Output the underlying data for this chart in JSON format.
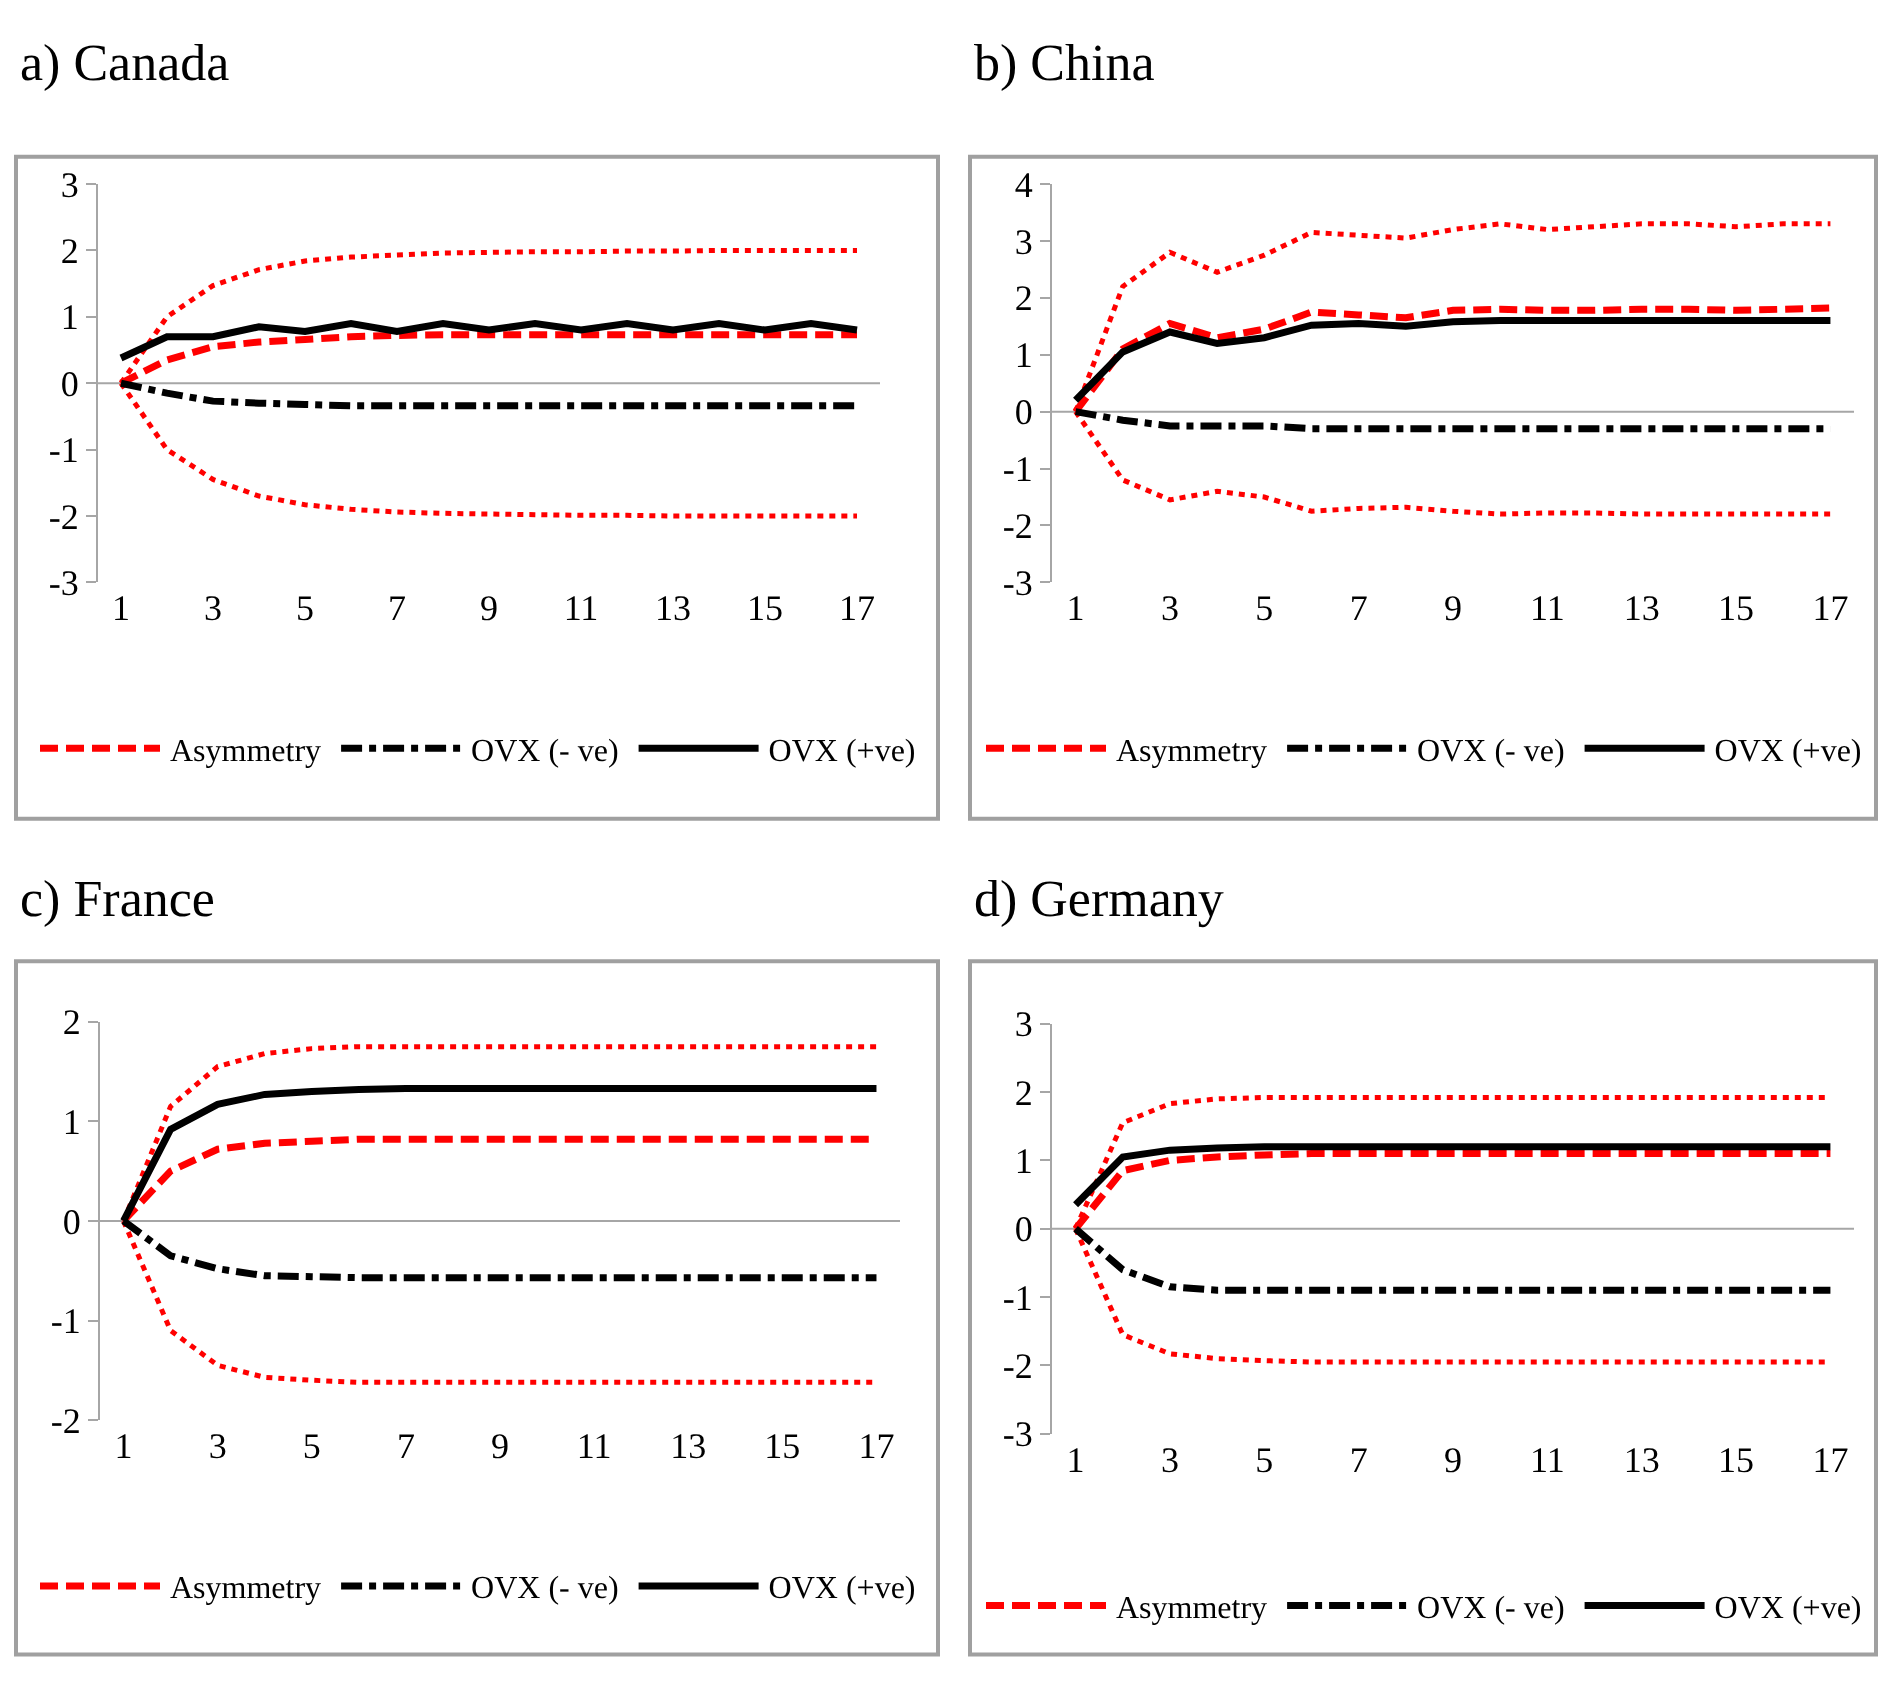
{
  "chart_data": [
    {
      "type": "line",
      "title": "a) Canada",
      "x": [
        1,
        2,
        3,
        4,
        5,
        6,
        7,
        8,
        9,
        10,
        11,
        12,
        13,
        14,
        15,
        16,
        17
      ],
      "xlim": [
        0.5,
        17.5
      ],
      "xticks": [
        1,
        3,
        5,
        7,
        9,
        11,
        13,
        15,
        17
      ],
      "ylim": [
        -3,
        3
      ],
      "yticks": [
        -3,
        -2,
        -1,
        0,
        1,
        2,
        3
      ],
      "grid": false,
      "legend": "bottom",
      "ref_lines": [
        {
          "axis": "y",
          "value": 0,
          "color": "#a6a6a6"
        }
      ],
      "series": [
        {
          "color": "#ff0000",
          "line_style": "dotted",
          "values": [
            0,
            1.0,
            1.47,
            1.71,
            1.84,
            1.9,
            1.93,
            1.96,
            1.97,
            1.98,
            1.98,
            1.99,
            1.99,
            2.0,
            2.0,
            2.0,
            2.0
          ]
        },
        {
          "color": "#ff0000",
          "line_style": "dotted",
          "values": [
            0,
            -1.0,
            -1.45,
            -1.7,
            -1.83,
            -1.9,
            -1.94,
            -1.96,
            -1.97,
            -1.98,
            -1.99,
            -1.99,
            -2.0,
            -2.0,
            -2.0,
            -2.0,
            -2.0
          ]
        },
        {
          "name": "Asymmetry",
          "color": "#ff0000",
          "line_style": "dashed",
          "values": [
            0,
            0.35,
            0.55,
            0.62,
            0.66,
            0.7,
            0.72,
            0.73,
            0.73,
            0.73,
            0.73,
            0.73,
            0.73,
            0.73,
            0.73,
            0.73,
            0.73
          ]
        },
        {
          "name": "OVX (- ve)",
          "color": "#000000",
          "line_style": "dashdot",
          "values": [
            0,
            -0.15,
            -0.27,
            -0.3,
            -0.32,
            -0.34,
            -0.34,
            -0.34,
            -0.34,
            -0.34,
            -0.34,
            -0.34,
            -0.34,
            -0.34,
            -0.34,
            -0.34,
            -0.34
          ]
        },
        {
          "name": "OVX (+ve)",
          "color": "#000000",
          "line_style": "solid",
          "values": [
            0.38,
            0.7,
            0.7,
            0.85,
            0.78,
            0.9,
            0.78,
            0.9,
            0.8,
            0.9,
            0.8,
            0.9,
            0.8,
            0.9,
            0.8,
            0.9,
            0.8
          ]
        }
      ]
    },
    {
      "type": "line",
      "title": "b) China",
      "x": [
        1,
        2,
        3,
        4,
        5,
        6,
        7,
        8,
        9,
        10,
        11,
        12,
        13,
        14,
        15,
        16,
        17
      ],
      "xlim": [
        0.5,
        17.5
      ],
      "xticks": [
        1,
        3,
        5,
        7,
        9,
        11,
        13,
        15,
        17
      ],
      "ylim": [
        -3,
        4
      ],
      "yticks": [
        -3,
        -2,
        -1,
        0,
        1,
        2,
        3,
        4
      ],
      "grid": false,
      "legend": "bottom",
      "ref_lines": [
        {
          "axis": "y",
          "value": 0,
          "color": "#a6a6a6"
        }
      ],
      "series": [
        {
          "color": "#ff0000",
          "line_style": "dotted",
          "values": [
            0,
            2.2,
            2.8,
            2.45,
            2.75,
            3.15,
            3.1,
            3.05,
            3.2,
            3.3,
            3.2,
            3.25,
            3.3,
            3.3,
            3.25,
            3.3,
            3.3
          ]
        },
        {
          "color": "#ff0000",
          "line_style": "dotted",
          "values": [
            0,
            -1.2,
            -1.55,
            -1.4,
            -1.5,
            -1.75,
            -1.7,
            -1.68,
            -1.75,
            -1.8,
            -1.78,
            -1.78,
            -1.8,
            -1.8,
            -1.8,
            -1.8,
            -1.8
          ]
        },
        {
          "name": "Asymmetry",
          "color": "#ff0000",
          "line_style": "dashed",
          "values": [
            0,
            1.1,
            1.55,
            1.3,
            1.45,
            1.75,
            1.7,
            1.65,
            1.78,
            1.8,
            1.78,
            1.78,
            1.8,
            1.8,
            1.78,
            1.8,
            1.82
          ]
        },
        {
          "name": "OVX (- ve)",
          "color": "#000000",
          "line_style": "dashdot",
          "values": [
            0,
            -0.15,
            -0.25,
            -0.25,
            -0.25,
            -0.3,
            -0.3,
            -0.3,
            -0.3,
            -0.3,
            -0.3,
            -0.3,
            -0.3,
            -0.3,
            -0.3,
            -0.3,
            -0.3
          ]
        },
        {
          "name": "OVX (+ve)",
          "color": "#000000",
          "line_style": "solid",
          "values": [
            0.2,
            1.05,
            1.4,
            1.2,
            1.3,
            1.52,
            1.55,
            1.5,
            1.58,
            1.6,
            1.6,
            1.6,
            1.6,
            1.6,
            1.6,
            1.6,
            1.6
          ]
        }
      ]
    },
    {
      "type": "line",
      "title": "c) France",
      "x": [
        1,
        2,
        3,
        4,
        5,
        6,
        7,
        8,
        9,
        10,
        11,
        12,
        13,
        14,
        15,
        16,
        17
      ],
      "xlim": [
        0.5,
        17.5
      ],
      "xticks": [
        1,
        3,
        5,
        7,
        9,
        11,
        13,
        15,
        17
      ],
      "ylim": [
        -2,
        2
      ],
      "yticks": [
        -2,
        -1,
        0,
        1,
        2
      ],
      "grid": false,
      "legend": "bottom",
      "ref_lines": [
        {
          "axis": "y",
          "value": 0,
          "color": "#a6a6a6"
        }
      ],
      "series": [
        {
          "color": "#ff0000",
          "line_style": "dotted",
          "values": [
            0,
            1.15,
            1.55,
            1.68,
            1.73,
            1.75,
            1.75,
            1.75,
            1.75,
            1.75,
            1.75,
            1.75,
            1.75,
            1.75,
            1.75,
            1.75,
            1.75
          ]
        },
        {
          "color": "#ff0000",
          "line_style": "dotted",
          "values": [
            0,
            -1.1,
            -1.45,
            -1.57,
            -1.6,
            -1.62,
            -1.62,
            -1.62,
            -1.62,
            -1.62,
            -1.62,
            -1.62,
            -1.62,
            -1.62,
            -1.62,
            -1.62,
            -1.62
          ]
        },
        {
          "name": "Asymmetry",
          "color": "#ff0000",
          "line_style": "dashed",
          "values": [
            0,
            0.5,
            0.72,
            0.78,
            0.8,
            0.82,
            0.82,
            0.82,
            0.82,
            0.82,
            0.82,
            0.82,
            0.82,
            0.82,
            0.82,
            0.82,
            0.82
          ]
        },
        {
          "name": "OVX (- ve)",
          "color": "#000000",
          "line_style": "dashdot",
          "values": [
            0,
            -0.35,
            -0.48,
            -0.55,
            -0.56,
            -0.57,
            -0.57,
            -0.57,
            -0.57,
            -0.57,
            -0.57,
            -0.57,
            -0.57,
            -0.57,
            -0.57,
            -0.57,
            -0.57
          ]
        },
        {
          "name": "OVX (+ve)",
          "color": "#000000",
          "line_style": "solid",
          "values": [
            0,
            0.92,
            1.17,
            1.27,
            1.3,
            1.32,
            1.33,
            1.33,
            1.33,
            1.33,
            1.33,
            1.33,
            1.33,
            1.33,
            1.33,
            1.33,
            1.33
          ]
        }
      ]
    },
    {
      "type": "line",
      "title": "d) Germany",
      "x": [
        1,
        2,
        3,
        4,
        5,
        6,
        7,
        8,
        9,
        10,
        11,
        12,
        13,
        14,
        15,
        16,
        17
      ],
      "xlim": [
        0.5,
        17.5
      ],
      "xticks": [
        1,
        3,
        5,
        7,
        9,
        11,
        13,
        15,
        17
      ],
      "ylim": [
        -3,
        3
      ],
      "yticks": [
        -3,
        -2,
        -1,
        0,
        1,
        2,
        3
      ],
      "grid": false,
      "legend": "bottom",
      "ref_lines": [
        {
          "axis": "y",
          "value": 0,
          "color": "#a6a6a6"
        }
      ],
      "series": [
        {
          "color": "#ff0000",
          "line_style": "dotted",
          "values": [
            0,
            1.55,
            1.83,
            1.9,
            1.92,
            1.92,
            1.92,
            1.92,
            1.92,
            1.92,
            1.92,
            1.92,
            1.92,
            1.92,
            1.92,
            1.92,
            1.92
          ]
        },
        {
          "color": "#ff0000",
          "line_style": "dotted",
          "values": [
            0,
            -1.55,
            -1.83,
            -1.9,
            -1.93,
            -1.95,
            -1.95,
            -1.95,
            -1.95,
            -1.95,
            -1.95,
            -1.95,
            -1.95,
            -1.95,
            -1.95,
            -1.95,
            -1.95
          ]
        },
        {
          "name": "Asymmetry",
          "color": "#ff0000",
          "line_style": "dashed",
          "values": [
            0,
            0.85,
            1.0,
            1.05,
            1.08,
            1.1,
            1.1,
            1.1,
            1.1,
            1.1,
            1.1,
            1.1,
            1.1,
            1.1,
            1.1,
            1.1,
            1.1
          ]
        },
        {
          "name": "OVX (- ve)",
          "color": "#000000",
          "line_style": "dashdot",
          "values": [
            0,
            -0.6,
            -0.85,
            -0.9,
            -0.9,
            -0.9,
            -0.9,
            -0.9,
            -0.9,
            -0.9,
            -0.9,
            -0.9,
            -0.9,
            -0.9,
            -0.9,
            -0.9,
            -0.9
          ]
        },
        {
          "name": "OVX (+ve)",
          "color": "#000000",
          "line_style": "solid",
          "values": [
            0.35,
            1.05,
            1.15,
            1.18,
            1.2,
            1.2,
            1.2,
            1.2,
            1.2,
            1.2,
            1.2,
            1.2,
            1.2,
            1.2,
            1.2,
            1.2,
            1.2
          ]
        }
      ]
    }
  ]
}
